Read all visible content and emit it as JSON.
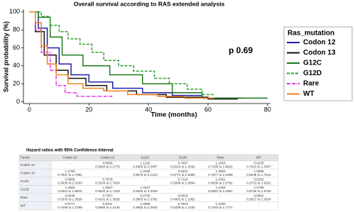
{
  "chart_data": {
    "type": "step",
    "title": "Overall survival according to RAS extended analysis",
    "ylabel": "Survival probability (%)",
    "xlabel": "Time (months)",
    "annotation": "p 0.69",
    "legend_title": "Ras_mutation",
    "legend": "right",
    "xlim": [
      -2,
      81
    ],
    "ylim": [
      -2,
      103
    ],
    "xticks": [
      0,
      20,
      40,
      60,
      80
    ],
    "yticks": [
      0,
      20,
      40,
      60,
      80,
      100
    ],
    "series": [
      {
        "name": "Codon 12",
        "color": "#1f1fa8",
        "style": "solid",
        "x": [
          0,
          3,
          3,
          6,
          6,
          10,
          10,
          14,
          14,
          20,
          20,
          28,
          28,
          38,
          38,
          48,
          48,
          58,
          58,
          72
        ],
        "values": [
          100,
          100,
          82,
          82,
          60,
          60,
          42,
          42,
          30,
          30,
          22,
          22,
          15,
          15,
          10,
          10,
          7,
          7,
          4,
          4
        ]
      },
      {
        "name": "Codon 13",
        "color": "#111111",
        "style": "solid",
        "x": [
          0,
          2,
          2,
          5,
          5,
          9,
          9,
          13,
          13,
          19,
          19,
          26,
          26,
          36,
          36,
          46,
          46,
          60,
          60,
          70
        ],
        "values": [
          100,
          100,
          78,
          78,
          52,
          52,
          35,
          35,
          26,
          26,
          18,
          18,
          12,
          12,
          8,
          8,
          5,
          5,
          3,
          3
        ]
      },
      {
        "name": "G12C",
        "color": "#1a7a1a",
        "style": "solid",
        "x": [
          0,
          3,
          3,
          7,
          7,
          11,
          11,
          18,
          18,
          27,
          27,
          38,
          38,
          48,
          48,
          58,
          58,
          80
        ],
        "values": [
          100,
          100,
          94,
          94,
          72,
          72,
          52,
          52,
          40,
          40,
          30,
          30,
          20,
          20,
          10,
          10,
          4,
          4
        ]
      },
      {
        "name": "G12D",
        "color": "#2ca02c",
        "style": "dashed",
        "x": [
          0,
          4,
          4,
          7,
          7,
          10,
          10,
          13,
          13,
          17,
          17,
          21,
          21,
          25,
          25,
          30,
          30,
          35,
          35,
          42,
          42,
          47,
          47,
          53,
          53,
          58,
          58,
          62
        ],
        "values": [
          100,
          100,
          95,
          95,
          85,
          85,
          78,
          78,
          70,
          70,
          64,
          64,
          55,
          55,
          46,
          46,
          40,
          40,
          34,
          34,
          26,
          26,
          20,
          20,
          14,
          14,
          8,
          8
        ]
      },
      {
        "name": "Rare",
        "color": "#e020e0",
        "style": "dashdot",
        "x": [
          0,
          2,
          2,
          4,
          4,
          7,
          7,
          9,
          9,
          12,
          12,
          16,
          16,
          28
        ],
        "values": [
          100,
          100,
          80,
          80,
          55,
          55,
          35,
          35,
          18,
          18,
          10,
          10,
          6,
          6
        ]
      },
      {
        "name": "WT",
        "color": "#f08020",
        "style": "solid",
        "x": [
          0,
          2,
          2,
          4,
          4,
          6,
          6,
          9,
          9,
          13,
          13,
          18,
          18,
          25,
          25,
          33,
          33,
          43,
          43,
          52,
          52,
          62
        ],
        "values": [
          100,
          100,
          88,
          88,
          62,
          62,
          42,
          42,
          30,
          30,
          20,
          20,
          15,
          15,
          12,
          12,
          8,
          8,
          6,
          6,
          4,
          4
        ]
      }
    ]
  },
  "table": {
    "title": "Hazard ratios with 95% Confidence Interval",
    "columns": [
      "Factor",
      "Codon 12",
      "Codon 13",
      "G12C",
      "G12D",
      "Rare",
      "WT"
    ],
    "rows": [
      {
        "factor": "Codon 12",
        "cells": [
          "-",
          {
            "hr": "0.8506",
            "ci": "0.5664 to 1.2776"
          },
          {
            "hr": "1.1225",
            "ci": "0.4950 to 2.5457"
          },
          {
            "hr": "0.7967",
            "ci": "0.5315 to 1.2032"
          },
          {
            "hr": "1.1663",
            "ci": "0.7180 to 1.8622"
          },
          {
            "hr": "0.9235",
            "ci": "0.7013 to 1.3407"
          }
        ]
      },
      {
        "factor": "Codon 13",
        "cells": [
          {
            "hr": "1.1756",
            "ci": "0.7827 to 1.7654"
          },
          "-",
          {
            "hr": "1.3196",
            "ci": "0.5579 to 3.1213"
          },
          {
            "hr": "0.9401",
            "ci": "0.5774 to 1.5305"
          },
          {
            "hr": "1.3593",
            "ci": "0.7677 to 2.3468"
          },
          {
            "hr": "1.0898",
            "ci": "0.8238 to 1.7514"
          }
        ]
      },
      {
        "factor": "G12C",
        "cells": [
          {
            "hr": "0.8909",
            "ci": "0.3928 to 2.0203"
          },
          {
            "hr": "0.7578",
            "ci": "0.3204 to 1.7924"
          },
          "-",
          {
            "hr": "0.7124",
            "ci": "0.3099 to 1.6864"
          },
          {
            "hr": "1.0391",
            "ci": "0.4030 to 2.6791"
          },
          {
            "hr": "0.8232",
            "ci": "0.3713 to 1.8251"
          }
        ]
      },
      {
        "factor": "G12D",
        "cells": [
          {
            "hr": "1.2505",
            "ci": "0.8311 to 1.8815"
          },
          {
            "hr": "1.0637",
            "ci": "0.6534 to 1.7318"
          },
          {
            "hr": "1.4037",
            "ci": "0.5930 to 3.3230"
          },
          "-",
          {
            "hr": "1.4459",
            "ci": "0.8367 to 2.4987"
          },
          {
            "hr": "1.2799",
            "ci": "0.8746 to 1.8730"
          }
        ]
      },
      {
        "factor": "Rare",
        "cells": [
          {
            "hr": "0.8646",
            "ci": "0.5370 to 1.3928"
          },
          {
            "hr": "0.7357",
            "ci": "0.4261 to 1.3026"
          },
          {
            "hr": "0.9708",
            "ci": "0.3963 to 2.3782"
          },
          {
            "hr": "0.6916",
            "ci": "0.4002 to 1.1952"
          },
          "-",
          {
            "hr": "0.8862",
            "ci": "0.5627 to 1.3924"
          }
        ]
      },
      {
        "factor": "WT",
        "cells": [
          {
            "hr": "0.9771",
            "ci": "0.7459 to 1.2799"
          },
          {
            "hr": "0.8311",
            "ci": "0.5690 to 1.2140"
          },
          {
            "hr": "1.0966",
            "ci": "0.4962 to 2.4540"
          },
          {
            "hr": "0.7813",
            "ci": "0.5339 to 1.1434"
          },
          {
            "hr": "1.1290",
            "ci": "0.7182 to 1.7771"
          },
          "-"
        ]
      }
    ]
  }
}
